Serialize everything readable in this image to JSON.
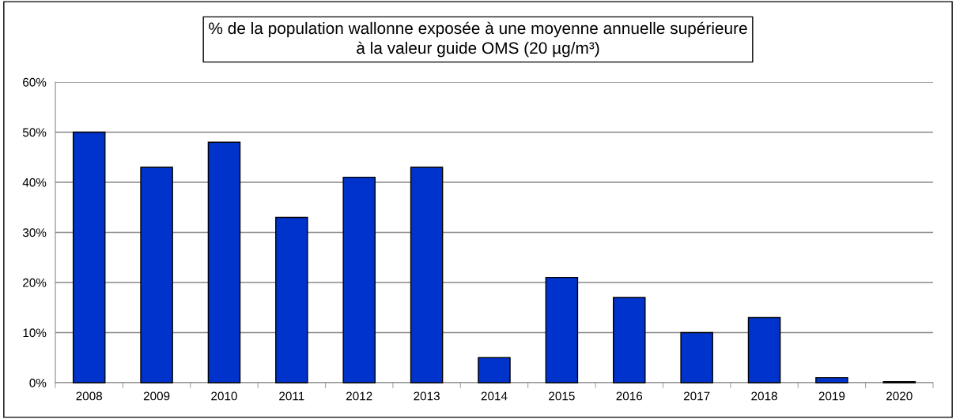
{
  "chart_data": {
    "type": "bar",
    "title": "% de la population wallonne exposée à une moyenne annuelle supérieure à la valeur guide OMS (20 µg/m³)",
    "categories": [
      "2008",
      "2009",
      "2010",
      "2011",
      "2012",
      "2013",
      "2014",
      "2015",
      "2016",
      "2017",
      "2018",
      "2019",
      "2020"
    ],
    "values": [
      50,
      43,
      48,
      33,
      41,
      43,
      5,
      21,
      17,
      10,
      13,
      1,
      0.2
    ],
    "color": "#0033cc",
    "ylim": [
      0,
      60
    ],
    "yticks": [
      {
        "value": 0,
        "label": "0%"
      },
      {
        "value": 10,
        "label": "10%"
      },
      {
        "value": 20,
        "label": "20%"
      },
      {
        "value": 30,
        "label": "30%"
      },
      {
        "value": 40,
        "label": "40%"
      },
      {
        "value": 50,
        "label": "50%"
      },
      {
        "value": 60,
        "label": "60%"
      }
    ],
    "grid": "y",
    "legend": false
  }
}
